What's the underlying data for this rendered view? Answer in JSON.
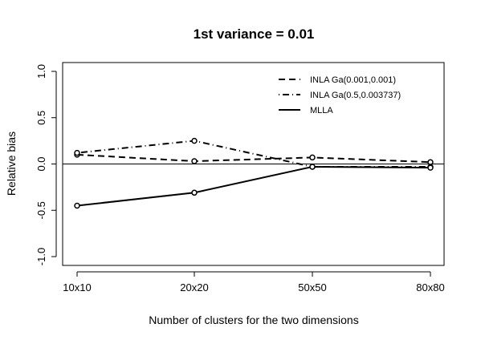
{
  "chart_data": {
    "type": "line",
    "title": "1st variance = 0.01",
    "xlabel": "Number of clusters for the two dimensions",
    "ylabel": "Relative bias",
    "categories": [
      "10x10",
      "20x20",
      "50x50",
      "80x80"
    ],
    "ylim": [
      -1.0,
      1.0
    ],
    "yticks": [
      -1.0,
      -0.5,
      0.0,
      0.5,
      1.0
    ],
    "ytick_labels": [
      "-1.0",
      "-0.5",
      "0.0",
      "0.5",
      "1.0"
    ],
    "reference_line": 0,
    "grid": false,
    "legend_position": "top-right",
    "series": [
      {
        "name": "INLA Ga(0.001,0.001)",
        "line_style": "dashed",
        "marker": "open-circle",
        "values": [
          0.1,
          0.03,
          0.07,
          0.02
        ]
      },
      {
        "name": "INLA Ga(0.5,0.003737)",
        "line_style": "dot-dash",
        "marker": "open-circle",
        "values": [
          0.12,
          0.25,
          -0.03,
          -0.03
        ]
      },
      {
        "name": "MLLA",
        "line_style": "solid",
        "marker": "open-circle",
        "values": [
          -0.45,
          -0.31,
          -0.03,
          -0.04
        ]
      }
    ]
  }
}
